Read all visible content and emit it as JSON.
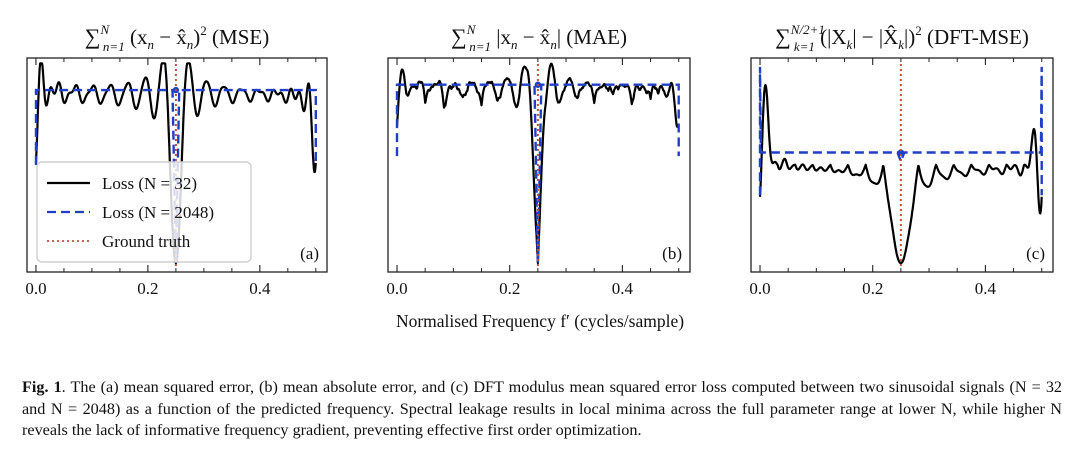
{
  "figure": {
    "xlabel": "Normalised Frequency f′ (cycles/sample)",
    "legend": {
      "entries": [
        {
          "label": "Loss (N = 32)",
          "style": "solid",
          "color": "#000000"
        },
        {
          "label": "Loss (N = 2048)",
          "style": "dashed",
          "color": "#1f3fc8"
        },
        {
          "label": "Ground truth",
          "style": "dotted",
          "color": "#c0503a"
        }
      ]
    }
  },
  "caption": {
    "label": "Fig. 1",
    "text": ". The (a) mean squared error, (b) mean absolute error, and (c) DFT modulus mean squared error loss computed between two sinusoidal signals (N = 32 and N = 2048) as a function of the predicted frequency. Spectral leakage results in local minima across the full parameter range at lower N, while higher N reveals the lack of informative frequency gradient, preventing effective first order optimization."
  },
  "chart_data": [
    {
      "type": "line",
      "panel": "(a)",
      "title": "Σ_{n=1}^{N} (x_n − x̂_n)^2 (MSE)",
      "title_parts": {
        "sum": "∑",
        "sup": "N",
        "sub": "n=1",
        "body": "(x",
        "body_sub": "n",
        "mid": " − x̂",
        "mid_sub": "n",
        "close": ")",
        "pow": "2",
        "tail": " (MSE)"
      },
      "xlabel": "Normalised Frequency f′ (cycles/sample)",
      "ylabel": "",
      "xlim": [
        -0.016,
        0.52
      ],
      "ylim": [
        -0.05,
        1.15
      ],
      "xticks": [
        0.0,
        0.2,
        0.4
      ],
      "xtick_labels": [
        "0.0",
        "0.2",
        "0.4"
      ],
      "minor_xticks": [
        0.05,
        0.1,
        0.15,
        0.25,
        0.3,
        0.35,
        0.45,
        0.5
      ],
      "y_ticks_shown": false,
      "legend_position": "lower-left",
      "ground_truth_x": 0.25,
      "series": [
        {
          "name": "Loss (N = 32)",
          "style": "solid",
          "color": "#000000",
          "model": "mse",
          "N": 32
        },
        {
          "name": "Loss (N = 2048)",
          "style": "dashed",
          "color": "#1f3fc8",
          "model": "flat",
          "level": 0.97,
          "edge_low": 0.55,
          "notch_min": 0.0
        },
        {
          "name": "Ground truth",
          "style": "dotted",
          "color": "#c0503a",
          "x": 0.25
        }
      ],
      "approx_points_N32": {
        "x": [
          0.0,
          0.008,
          0.05,
          0.1,
          0.15,
          0.2,
          0.22,
          0.24,
          0.25,
          0.26,
          0.28,
          0.3,
          0.35,
          0.4,
          0.45,
          0.492,
          0.5
        ],
        "y": [
          0.55,
          1.08,
          0.97,
          0.98,
          0.96,
          0.93,
          1.12,
          0.35,
          0.0,
          0.35,
          1.12,
          0.93,
          0.96,
          0.98,
          0.97,
          1.08,
          0.55
        ]
      }
    },
    {
      "type": "line",
      "panel": "(b)",
      "title": "Σ_{n=1}^{N} |x_n − x̂_n| (MAE)",
      "title_parts": {
        "sum": "∑",
        "sup": "N",
        "sub": "n=1",
        "body": "|x",
        "body_sub": "n",
        "mid": " − x̂",
        "mid_sub": "n",
        "close": "|",
        "pow": "",
        "tail": " (MAE)"
      },
      "xlabel": "Normalised Frequency f′ (cycles/sample)",
      "ylabel": "",
      "xlim": [
        -0.016,
        0.52
      ],
      "ylim": [
        -0.05,
        1.15
      ],
      "xticks": [
        0.0,
        0.2,
        0.4
      ],
      "xtick_labels": [
        "0.0",
        "0.2",
        "0.4"
      ],
      "minor_xticks": [
        0.05,
        0.1,
        0.15,
        0.25,
        0.3,
        0.35,
        0.45,
        0.5
      ],
      "y_ticks_shown": false,
      "ground_truth_x": 0.25,
      "series": [
        {
          "name": "Loss (N = 32)",
          "style": "solid",
          "color": "#000000",
          "model": "mae",
          "N": 32
        },
        {
          "name": "Loss (N = 2048)",
          "style": "dashed",
          "color": "#1f3fc8",
          "model": "flat",
          "level": 1.0,
          "edge_low": 0.6,
          "notch_min": 0.0
        },
        {
          "name": "Ground truth",
          "style": "dotted",
          "color": "#c0503a",
          "x": 0.25
        }
      ],
      "approx_points_N32": {
        "x": [
          0.0,
          0.008,
          0.05,
          0.1,
          0.15,
          0.2,
          0.22,
          0.24,
          0.25,
          0.26,
          0.28,
          0.3,
          0.35,
          0.4,
          0.45,
          0.492,
          0.5
        ],
        "y": [
          0.6,
          1.06,
          0.98,
          0.99,
          0.97,
          0.93,
          1.1,
          0.45,
          0.0,
          0.45,
          1.1,
          0.93,
          0.97,
          0.99,
          0.98,
          1.06,
          0.6
        ]
      }
    },
    {
      "type": "line",
      "panel": "(c)",
      "title": "Σ_{k=1}^{N/2+1} (|X_k| − |X̂_k|)^2 (DFT-MSE)",
      "title_parts": {
        "sum": "∑",
        "sup": "N/2+1",
        "sub": "k=1",
        "body": "(|X",
        "body_sub": "k",
        "mid": "| − |X̂",
        "mid_sub": "k",
        "close": "|)",
        "pow": "2",
        "tail": " (DFT-MSE)"
      },
      "xlabel": "Normalised Frequency f′ (cycles/sample)",
      "ylabel": "",
      "xlim": [
        -0.016,
        0.52
      ],
      "ylim": [
        -0.05,
        1.15
      ],
      "xticks": [
        0.0,
        0.2,
        0.4
      ],
      "xtick_labels": [
        "0.0",
        "0.2",
        "0.4"
      ],
      "minor_xticks": [
        0.05,
        0.1,
        0.15,
        0.25,
        0.3,
        0.35,
        0.45,
        0.5
      ],
      "y_ticks_shown": false,
      "ground_truth_x": 0.25,
      "series": [
        {
          "name": "Loss (N = 32)",
          "style": "solid",
          "color": "#000000",
          "model": "dft",
          "N": 32
        },
        {
          "name": "Loss (N = 2048)",
          "style": "dashed",
          "color": "#1f3fc8",
          "model": "flat",
          "level": 0.62,
          "edge_low": 0.38,
          "edge_high": 1.1,
          "notch_min": 0.57
        },
        {
          "name": "Ground truth",
          "style": "dotted",
          "color": "#c0503a",
          "x": 0.25
        }
      ],
      "approx_points_N32": {
        "x": [
          0.0,
          0.008,
          0.02,
          0.05,
          0.1,
          0.15,
          0.2,
          0.22,
          0.235,
          0.25,
          0.265,
          0.28,
          0.3,
          0.35,
          0.4,
          0.45,
          0.48,
          0.492,
          0.5
        ],
        "y": [
          0.38,
          1.02,
          0.55,
          0.53,
          0.51,
          0.52,
          0.44,
          0.6,
          0.25,
          0.0,
          0.25,
          0.6,
          0.44,
          0.52,
          0.51,
          0.53,
          0.55,
          1.02,
          0.38
        ]
      }
    }
  ]
}
